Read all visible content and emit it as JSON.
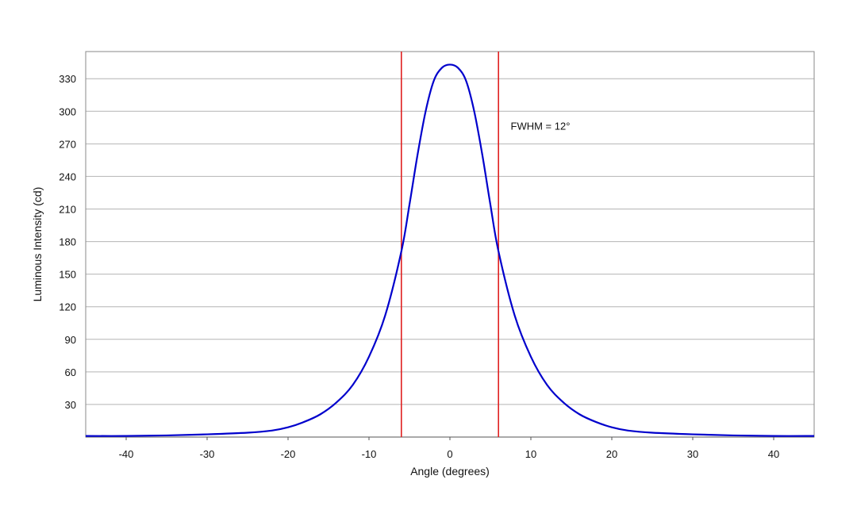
{
  "chart_data": {
    "type": "line",
    "xlabel": "Angle (degrees)",
    "ylabel": "Luminous Intensity (cd)",
    "xlim": [
      -45,
      45
    ],
    "ylim": [
      0,
      355
    ],
    "x_ticks": [
      -40,
      -30,
      -20,
      -10,
      0,
      10,
      20,
      30,
      40
    ],
    "y_ticks": [
      30,
      60,
      90,
      120,
      150,
      180,
      210,
      240,
      270,
      300,
      330
    ],
    "grid": "horizontal",
    "series": [
      {
        "color": "#0000cc",
        "x": [
          -45,
          -40,
          -35,
          -30,
          -25,
          -22,
          -20,
          -18,
          -16,
          -14,
          -12,
          -10,
          -8,
          -6,
          -5,
          -4,
          -3,
          -2,
          -1,
          0,
          1,
          2,
          3,
          4,
          5,
          6,
          8,
          10,
          12,
          14,
          16,
          18,
          20,
          22,
          25,
          30,
          35,
          40,
          45
        ],
        "y": [
          1,
          1,
          1.5,
          2.5,
          4,
          6,
          9,
          14,
          21,
          32,
          48,
          74,
          112,
          171,
          214,
          260,
          300,
          328,
          340,
          343,
          340,
          328,
          300,
          260,
          214,
          171,
          112,
          74,
          48,
          32,
          21,
          14,
          9,
          6,
          4,
          2.5,
          1.5,
          1,
          1
        ]
      }
    ],
    "reference_lines": [
      {
        "x": -6,
        "color": "#e02020"
      },
      {
        "x": 6,
        "color": "#e02020"
      }
    ],
    "annotations": [
      {
        "text": "FWHM = 12°",
        "x": 7.5,
        "y": 283
      }
    ]
  }
}
